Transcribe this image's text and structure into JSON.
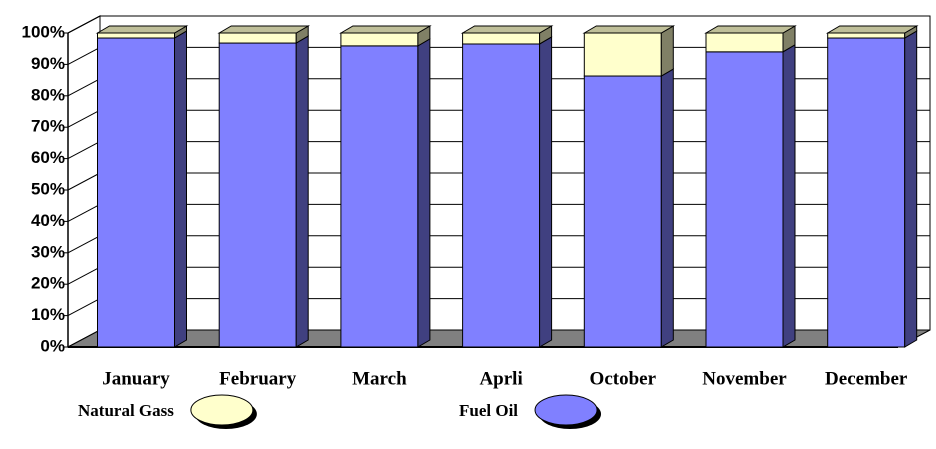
{
  "chart_data": {
    "type": "bar",
    "stacked": true,
    "categories": [
      "January",
      "February",
      "March",
      "Aprli",
      "October",
      "November",
      "December"
    ],
    "series": [
      {
        "name": "Fuel Oil",
        "color": "#8080ff",
        "values": [
          98.4,
          96.8,
          95.9,
          96.5,
          86.3,
          94,
          98.4
        ]
      },
      {
        "name": "Natural Gass",
        "color": "#ffffcc",
        "values": [
          1.6,
          3.2,
          4.1,
          3.5,
          13.7,
          6,
          1.6
        ]
      }
    ],
    "legend_order": [
      "Natural Gass",
      "Fuel Oil"
    ],
    "ylim": [
      0,
      100
    ],
    "yticks": [
      {
        "value": 0,
        "label": "0%"
      },
      {
        "value": 10,
        "label": "10%"
      },
      {
        "value": 20,
        "label": "20%"
      },
      {
        "value": 30,
        "label": "30%"
      },
      {
        "value": 40,
        "label": "40%"
      },
      {
        "value": 50,
        "label": "50%"
      },
      {
        "value": 60,
        "label": "60%"
      },
      {
        "value": 70,
        "label": "70%"
      },
      {
        "value": 80,
        "label": "80%"
      },
      {
        "value": 90,
        "label": "90%"
      },
      {
        "value": 100,
        "label": "100%"
      }
    ],
    "grid": true
  }
}
